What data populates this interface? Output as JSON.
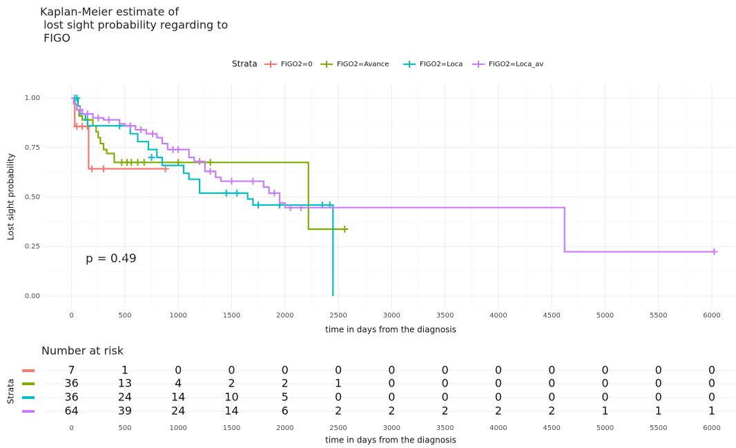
{
  "chart_data": {
    "type": "km",
    "title": [
      "Kaplan-Meier estimate of",
      " lost sight probability regarding to",
      " FIGO"
    ],
    "x_label": "time in days from the diagnosis",
    "y_label": "Lost sight probability",
    "legend_title": "Strata",
    "annotation": "p = 0.49",
    "xlim": [
      -250,
      6220
    ],
    "ylim": [
      -0.063,
      1.07
    ],
    "xticks": [
      0,
      500,
      1000,
      1500,
      2000,
      2500,
      3000,
      3500,
      4000,
      4500,
      5000,
      5500,
      6000
    ],
    "yticks": [
      {
        "value": 0,
        "label": "0.00"
      },
      {
        "value": 0.25,
        "label": "0.25"
      },
      {
        "value": 0.5,
        "label": "0.50"
      },
      {
        "value": 0.75,
        "label": "0.75"
      },
      {
        "value": 1,
        "label": "1.00"
      }
    ],
    "grid": true,
    "series": [
      {
        "name": "FIGO2=0",
        "color": "#F8766D",
        "x": [
          0,
          30,
          160,
          880
        ],
        "values": [
          1,
          0.857,
          0.643,
          0.643
        ],
        "censor_x": [
          50,
          100,
          150,
          190,
          300,
          880
        ],
        "censor_values": [
          0.857,
          0.857,
          0.857,
          0.643,
          0.643,
          0.643
        ]
      },
      {
        "name": "FIGO2=Avance",
        "color": "#7CAE00",
        "x": [
          0,
          30,
          50,
          70,
          100,
          200,
          230,
          250,
          270,
          300,
          330,
          400,
          2220,
          2560
        ],
        "values": [
          1,
          0.97,
          0.94,
          0.91,
          0.89,
          0.86,
          0.83,
          0.8,
          0.77,
          0.74,
          0.72,
          0.675,
          0.338,
          0.338
        ],
        "censor_x": [
          150,
          470,
          520,
          560,
          620,
          680,
          1000,
          1300,
          2560
        ],
        "censor_values": [
          0.89,
          0.675,
          0.675,
          0.675,
          0.675,
          0.675,
          0.675,
          0.675,
          0.338
        ]
      },
      {
        "name": "FIGO2=Loca",
        "color": "#00BFC4",
        "x": [
          0,
          60,
          80,
          130,
          150,
          550,
          620,
          720,
          800,
          850,
          1050,
          1100,
          1200,
          1650,
          1700,
          2450,
          2450
        ],
        "values": [
          1,
          0.96,
          0.92,
          0.89,
          0.86,
          0.82,
          0.78,
          0.74,
          0.7,
          0.66,
          0.62,
          0.59,
          0.52,
          0.49,
          0.46,
          0.46,
          0
        ],
        "censor_x": [
          30,
          50,
          450,
          750,
          1450,
          1550,
          1750,
          1950,
          2350,
          2420
        ],
        "censor_values": [
          1,
          1,
          0.86,
          0.7,
          0.52,
          0.52,
          0.46,
          0.46,
          0.46,
          0.46
        ]
      },
      {
        "name": "FIGO2=Loca_av",
        "color": "#C77CFF",
        "x": [
          0,
          20,
          50,
          100,
          200,
          300,
          450,
          500,
          600,
          700,
          800,
          850,
          900,
          1100,
          1150,
          1250,
          1350,
          1400,
          1800,
          1850,
          1950,
          2000,
          4620,
          6022
        ],
        "values": [
          1,
          0.97,
          0.94,
          0.92,
          0.9,
          0.89,
          0.87,
          0.86,
          0.84,
          0.82,
          0.8,
          0.77,
          0.74,
          0.7,
          0.68,
          0.63,
          0.6,
          0.58,
          0.55,
          0.52,
          0.47,
          0.447,
          0.224,
          0.224
        ],
        "censor_x": [
          80,
          150,
          250,
          350,
          550,
          650,
          760,
          950,
          1000,
          1200,
          1300,
          1500,
          1700,
          1900,
          2050,
          2150,
          6022
        ],
        "censor_values": [
          0.94,
          0.92,
          0.9,
          0.89,
          0.86,
          0.84,
          0.82,
          0.74,
          0.74,
          0.68,
          0.63,
          0.58,
          0.58,
          0.52,
          0.447,
          0.447,
          0.224
        ]
      }
    ],
    "risk_table": {
      "title": "Number at risk",
      "y_label": "Strata",
      "x_label": "time in days from the diagnosis",
      "times": [
        0,
        500,
        1000,
        1500,
        2000,
        2500,
        3000,
        3500,
        4000,
        4500,
        5000,
        5500,
        6000
      ],
      "rows": [
        [
          7,
          1,
          0,
          0,
          0,
          0,
          0,
          0,
          0,
          0,
          0,
          0,
          0
        ],
        [
          36,
          13,
          4,
          2,
          2,
          1,
          0,
          0,
          0,
          0,
          0,
          0,
          0
        ],
        [
          36,
          24,
          14,
          10,
          5,
          0,
          0,
          0,
          0,
          0,
          0,
          0,
          0
        ],
        [
          64,
          39,
          24,
          14,
          6,
          2,
          2,
          2,
          2,
          2,
          1,
          1,
          1
        ]
      ]
    }
  }
}
